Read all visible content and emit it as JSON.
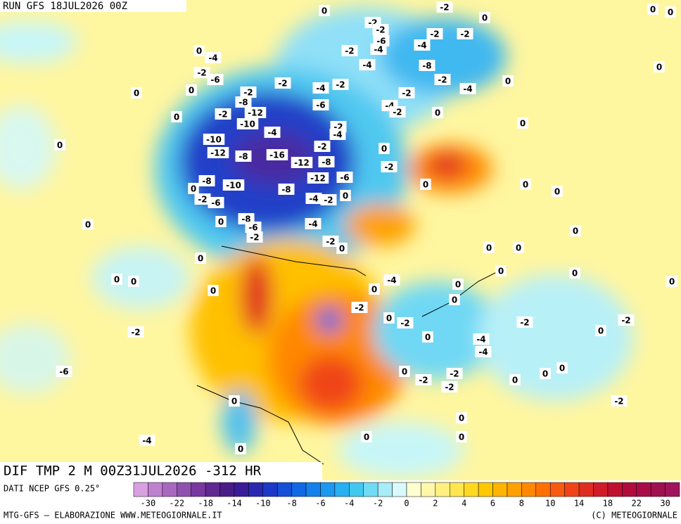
{
  "header": {
    "run": "RUN GFS 18JUL2026 00Z"
  },
  "map": {
    "caption": "DIF TMP 2 M 00Z31JUL2026 -312 HR",
    "contour_labels": [
      0,
      -2,
      0,
      0,
      0,
      -2,
      -2,
      -2,
      -2,
      -6,
      -4,
      -4,
      -4,
      0,
      -2,
      -4,
      -8,
      0,
      -2,
      -6,
      0,
      0,
      -2,
      -2,
      -4,
      -2,
      -2,
      -4,
      0,
      -2,
      -8,
      -6,
      -4,
      -2,
      0,
      0,
      -2,
      -12,
      -10,
      0,
      -2,
      -4,
      -4,
      -10,
      0,
      -2,
      0,
      -12,
      -8,
      -16,
      -12,
      -8,
      -2,
      -12,
      -6,
      -8,
      -10,
      -8,
      0,
      -2,
      -6,
      -4,
      -2,
      0,
      0,
      0,
      0,
      -8,
      -6,
      -4,
      0,
      0,
      -2,
      0,
      -2,
      0,
      0,
      0,
      0,
      0,
      0,
      0,
      0,
      0,
      0,
      -4,
      0,
      0,
      0,
      -2,
      0,
      -2,
      -2,
      -2,
      -2,
      0,
      0,
      -4,
      -4,
      -6,
      0,
      -2,
      -2,
      0,
      0,
      0,
      -2,
      0,
      -2,
      0,
      -4,
      0,
      0,
      0,
      -4
    ]
  },
  "colorbar": {
    "colors": [
      "#d8a0e0",
      "#c080d0",
      "#a868c0",
      "#9050b0",
      "#7838a0",
      "#602890",
      "#4a1c88",
      "#3a1c98",
      "#2a28b0",
      "#1c38c8",
      "#1450d8",
      "#1068e4",
      "#1480ec",
      "#1c98f0",
      "#28b0f0",
      "#40c8f0",
      "#70dcf4",
      "#a8ecf8",
      "#d8fafc",
      "#ffffd0",
      "#fff8a8",
      "#fff080",
      "#ffe650",
      "#ffd820",
      "#ffc800",
      "#ffb400",
      "#ffa000",
      "#ff8800",
      "#ff7000",
      "#f85a10",
      "#f04418",
      "#e02c20",
      "#d01c28",
      "#c01030",
      "#b00c3c",
      "#a80c48",
      "#a01050",
      "#a0145c"
    ],
    "ticks": [
      -30,
      -22,
      -18,
      -14,
      -10,
      -8,
      -6,
      -4,
      -2,
      0,
      2,
      4,
      6,
      8,
      10,
      14,
      18,
      22,
      30
    ]
  },
  "footer": {
    "source": "DATI NCEP GFS 0.25°",
    "credit": "MTG-GFS – ELABORAZIONE WWW.METEOGIORNALE.IT",
    "copyright": "(C) METEOGIORNALE"
  }
}
